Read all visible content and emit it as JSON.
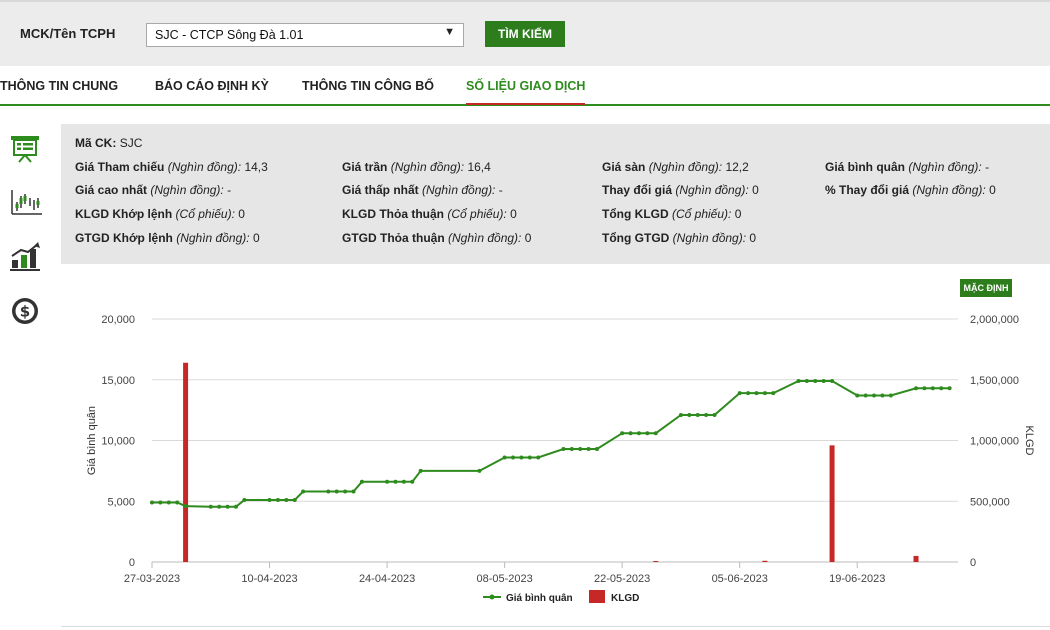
{
  "search": {
    "label": "MCK/Tên TCPH",
    "selected_value": "SJC - CTCP Sông Đà 1.01",
    "button_label": "TÌM KIẾM"
  },
  "tabs": [
    {
      "label": "THÔNG TIN CHUNG"
    },
    {
      "label": "BÁO CÁO ĐỊNH KỲ"
    },
    {
      "label": "THÔNG TIN CÔNG BỐ"
    },
    {
      "label": "SỐ LIỆU GIAO DỊCH",
      "active": true
    }
  ],
  "side_icons": [
    "presentation-icon",
    "candlestick-icon",
    "bar-growth-icon",
    "dollar-icon"
  ],
  "info": {
    "code_label": "Mã CK:",
    "code_value": "SJC",
    "fields": [
      {
        "label": "Giá Tham chiếu",
        "unit": "(Nghìn đồng):",
        "value": "14,3"
      },
      {
        "label": "Giá trần",
        "unit": "(Nghìn đồng):",
        "value": "16,4"
      },
      {
        "label": "Giá sàn",
        "unit": "(Nghìn đồng):",
        "value": "12,2"
      },
      {
        "label": "Giá bình quân",
        "unit": "(Nghìn đồng):",
        "value": "-"
      },
      {
        "label": "Giá cao nhất",
        "unit": "(Nghìn đồng):",
        "value": "-"
      },
      {
        "label": "Giá thấp nhất",
        "unit": "(Nghìn đồng):",
        "value": "-"
      },
      {
        "label": "Thay đổi giá",
        "unit": "(Nghìn đồng):",
        "value": "0"
      },
      {
        "label": "% Thay đổi giá",
        "unit": "(Nghìn đồng):",
        "value": "0"
      },
      {
        "label": "KLGD Khớp lệnh",
        "unit": "(Cổ phiếu):",
        "value": "0"
      },
      {
        "label": "KLGD Thỏa thuận",
        "unit": "(Cổ phiếu):",
        "value": "0"
      },
      {
        "label": "Tổng KLGD",
        "unit": "(Cổ phiếu):",
        "value": "0"
      },
      {
        "label": "GTGD Khớp lệnh",
        "unit": "(Nghìn đồng):",
        "value": "0"
      },
      {
        "label": "GTGD Thỏa thuận",
        "unit": "(Nghìn đồng):",
        "value": "0"
      },
      {
        "label": "Tổng GTGD",
        "unit": "(Nghìn đồng):",
        "value": "0"
      }
    ]
  },
  "default_button_label": "MẶC ĐỊNH",
  "colors": {
    "accent": "#2e7d1d",
    "line": "#2e8b1e",
    "bar": "#c62828",
    "panel": "#e6e6e6"
  },
  "chart_data": {
    "type": "line",
    "x_ticks": [
      "27-03-2023",
      "10-04-2023",
      "24-04-2023",
      "08-05-2023",
      "22-05-2023",
      "05-06-2023",
      "19-06-2023"
    ],
    "x_range": [
      "2023-03-27",
      "2023-07-01"
    ],
    "ylabel": "Giá bình quân",
    "y2label": "KLGD",
    "ylim": [
      0,
      20000
    ],
    "y2lim": [
      0,
      2000000
    ],
    "y_ticks": [
      "0",
      "5,000",
      "10,000",
      "15,000",
      "20,000"
    ],
    "y2_ticks": [
      "0",
      "500,000",
      "1,000,000",
      "1,500,000",
      "2,000,000"
    ],
    "grid": true,
    "legend_position": "bottom",
    "series": [
      {
        "name": "Giá bình quân",
        "kind": "line",
        "color": "#2e8b1e",
        "points": [
          [
            "2023-03-27",
            4900
          ],
          [
            "2023-03-28",
            4900
          ],
          [
            "2023-03-29",
            4900
          ],
          [
            "2023-03-30",
            4900
          ],
          [
            "2023-03-31",
            4600
          ],
          [
            "2023-04-03",
            4550
          ],
          [
            "2023-04-04",
            4550
          ],
          [
            "2023-04-05",
            4550
          ],
          [
            "2023-04-06",
            4550
          ],
          [
            "2023-04-07",
            5100
          ],
          [
            "2023-04-10",
            5100
          ],
          [
            "2023-04-11",
            5100
          ],
          [
            "2023-04-12",
            5100
          ],
          [
            "2023-04-13",
            5100
          ],
          [
            "2023-04-14",
            5800
          ],
          [
            "2023-04-17",
            5800
          ],
          [
            "2023-04-18",
            5800
          ],
          [
            "2023-04-19",
            5800
          ],
          [
            "2023-04-20",
            5800
          ],
          [
            "2023-04-21",
            6600
          ],
          [
            "2023-04-24",
            6600
          ],
          [
            "2023-04-25",
            6600
          ],
          [
            "2023-04-26",
            6600
          ],
          [
            "2023-04-27",
            6600
          ],
          [
            "2023-04-28",
            7500
          ],
          [
            "2023-05-05",
            7500
          ],
          [
            "2023-05-08",
            8600
          ],
          [
            "2023-05-09",
            8600
          ],
          [
            "2023-05-10",
            8600
          ],
          [
            "2023-05-11",
            8600
          ],
          [
            "2023-05-12",
            8600
          ],
          [
            "2023-05-15",
            9300
          ],
          [
            "2023-05-16",
            9300
          ],
          [
            "2023-05-17",
            9300
          ],
          [
            "2023-05-18",
            9300
          ],
          [
            "2023-05-19",
            9300
          ],
          [
            "2023-05-22",
            10600
          ],
          [
            "2023-05-23",
            10600
          ],
          [
            "2023-05-24",
            10600
          ],
          [
            "2023-05-25",
            10600
          ],
          [
            "2023-05-26",
            10600
          ],
          [
            "2023-05-29",
            12100
          ],
          [
            "2023-05-30",
            12100
          ],
          [
            "2023-05-31",
            12100
          ],
          [
            "2023-06-01",
            12100
          ],
          [
            "2023-06-02",
            12100
          ],
          [
            "2023-06-05",
            13900
          ],
          [
            "2023-06-06",
            13900
          ],
          [
            "2023-06-07",
            13900
          ],
          [
            "2023-06-08",
            13900
          ],
          [
            "2023-06-09",
            13900
          ],
          [
            "2023-06-12",
            14900
          ],
          [
            "2023-06-13",
            14900
          ],
          [
            "2023-06-14",
            14900
          ],
          [
            "2023-06-15",
            14900
          ],
          [
            "2023-06-16",
            14900
          ],
          [
            "2023-06-19",
            13700
          ],
          [
            "2023-06-20",
            13700
          ],
          [
            "2023-06-21",
            13700
          ],
          [
            "2023-06-22",
            13700
          ],
          [
            "2023-06-23",
            13700
          ],
          [
            "2023-06-26",
            14300
          ],
          [
            "2023-06-27",
            14300
          ],
          [
            "2023-06-28",
            14300
          ],
          [
            "2023-06-29",
            14300
          ],
          [
            "2023-06-30",
            14300
          ]
        ]
      },
      {
        "name": "KLGD",
        "kind": "bar",
        "color": "#c62828",
        "points": [
          [
            "2023-03-31",
            1640000
          ],
          [
            "2023-05-26",
            8000
          ],
          [
            "2023-06-08",
            10000
          ],
          [
            "2023-06-16",
            960000
          ],
          [
            "2023-06-26",
            50000
          ]
        ]
      }
    ]
  }
}
